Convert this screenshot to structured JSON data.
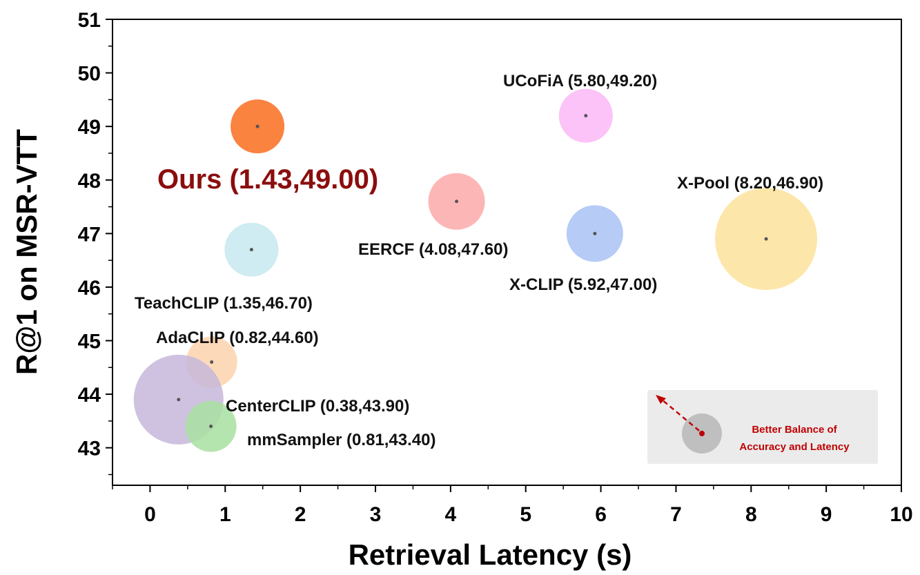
{
  "chart_data": {
    "type": "scatter",
    "title": "",
    "xlabel": "Retrieval Latency (s)",
    "ylabel": "R@1 on MSR-VTT",
    "xlim": [
      -0.5,
      10
    ],
    "ylim": [
      42.3,
      51
    ],
    "xticks": [
      0,
      1,
      2,
      3,
      4,
      5,
      6,
      7,
      8,
      9,
      10
    ],
    "yticks": [
      43,
      44,
      45,
      46,
      47,
      48,
      49,
      50,
      51
    ],
    "points": [
      {
        "label": "Ours (1.43,49.00)",
        "x": 1.43,
        "y": 49.0,
        "color": "#f96d1e",
        "highlight": true
      },
      {
        "label": "UCoFiA (5.80,49.20)",
        "x": 5.8,
        "y": 49.2,
        "color": "#fbb8f7"
      },
      {
        "label": "EERCF (4.08,47.60)",
        "x": 4.08,
        "y": 47.6,
        "color": "#fda9a9"
      },
      {
        "label": "X-CLIP (5.92,47.00)",
        "x": 5.92,
        "y": 47.0,
        "color": "#a9c2f3"
      },
      {
        "label": "X-Pool  (8.20,46.90)",
        "x": 8.2,
        "y": 46.9,
        "color": "#fde29a"
      },
      {
        "label": "TeachCLIP (1.35,46.70)",
        "x": 1.35,
        "y": 46.7,
        "color": "#c6e9ef"
      },
      {
        "label": "AdaCLIP (0.82,44.60)",
        "x": 0.82,
        "y": 44.6,
        "color": "#fbd3ad"
      },
      {
        "label": "CenterCLIP (0.38,43.90)",
        "x": 0.38,
        "y": 43.9,
        "color": "#c7b7da"
      },
      {
        "label": "mmSampler (0.81,43.40)",
        "x": 0.81,
        "y": 43.4,
        "color": "#a8e0a0"
      }
    ],
    "legend": {
      "position": "bottom-right",
      "lines": [
        "Better Balance of",
        "Accuracy  and Latency"
      ]
    },
    "grid": false
  }
}
